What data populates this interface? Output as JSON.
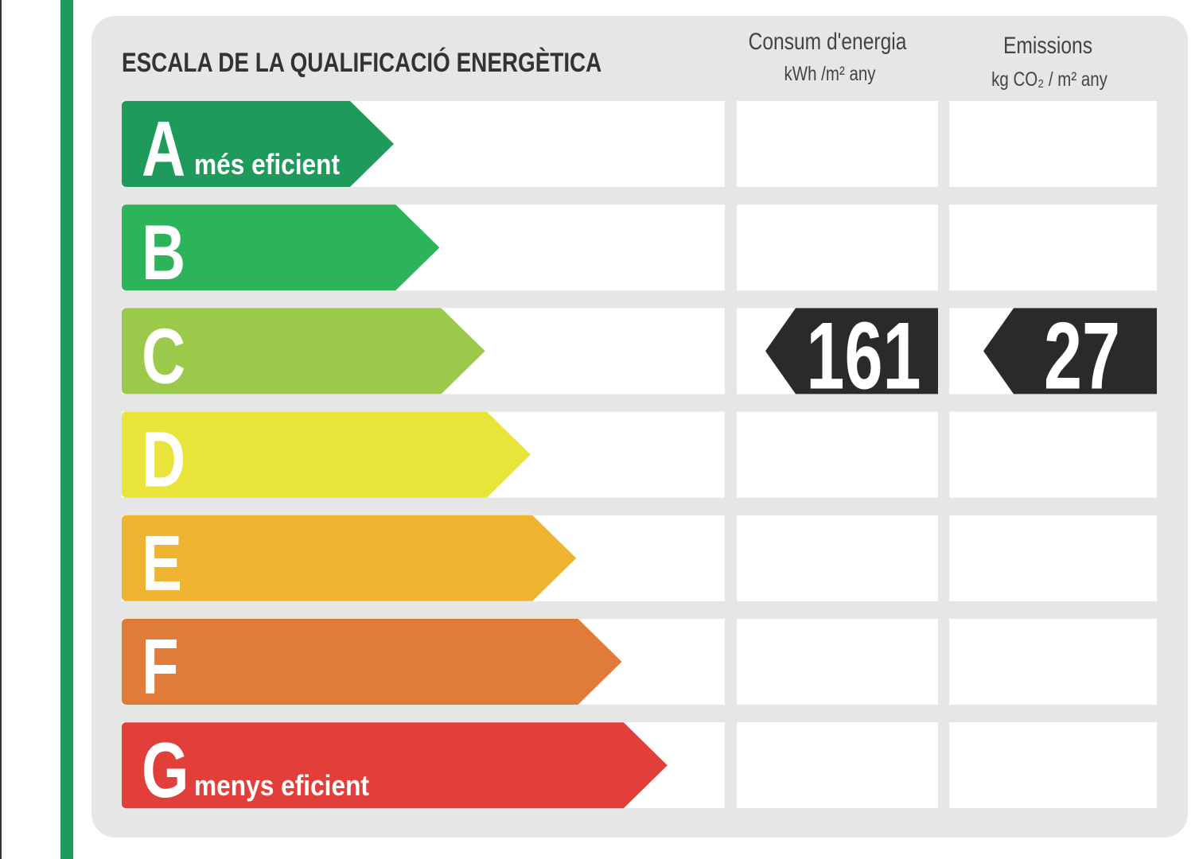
{
  "title": "ESCALA DE LA QUALIFICACIÓ ENERGÈTICA",
  "columns": [
    {
      "title": "Consum d'energia",
      "unit": "kWh /m² any"
    },
    {
      "title": "Emissions",
      "unit": "kg CO₂ / m² any"
    }
  ],
  "classes": [
    {
      "letter": "A",
      "note": "més eficient",
      "color": "#1e9a5a"
    },
    {
      "letter": "B",
      "color": "#2bb459"
    },
    {
      "letter": "C",
      "color": "#9bc94a",
      "consumption": 161,
      "emissions": 27
    },
    {
      "letter": "D",
      "color": "#e9e43a"
    },
    {
      "letter": "E",
      "color": "#eeb431"
    },
    {
      "letter": "F",
      "color": "#e07b39"
    },
    {
      "letter": "G",
      "note": "menys eficient",
      "color": "#e33f3a"
    }
  ]
}
